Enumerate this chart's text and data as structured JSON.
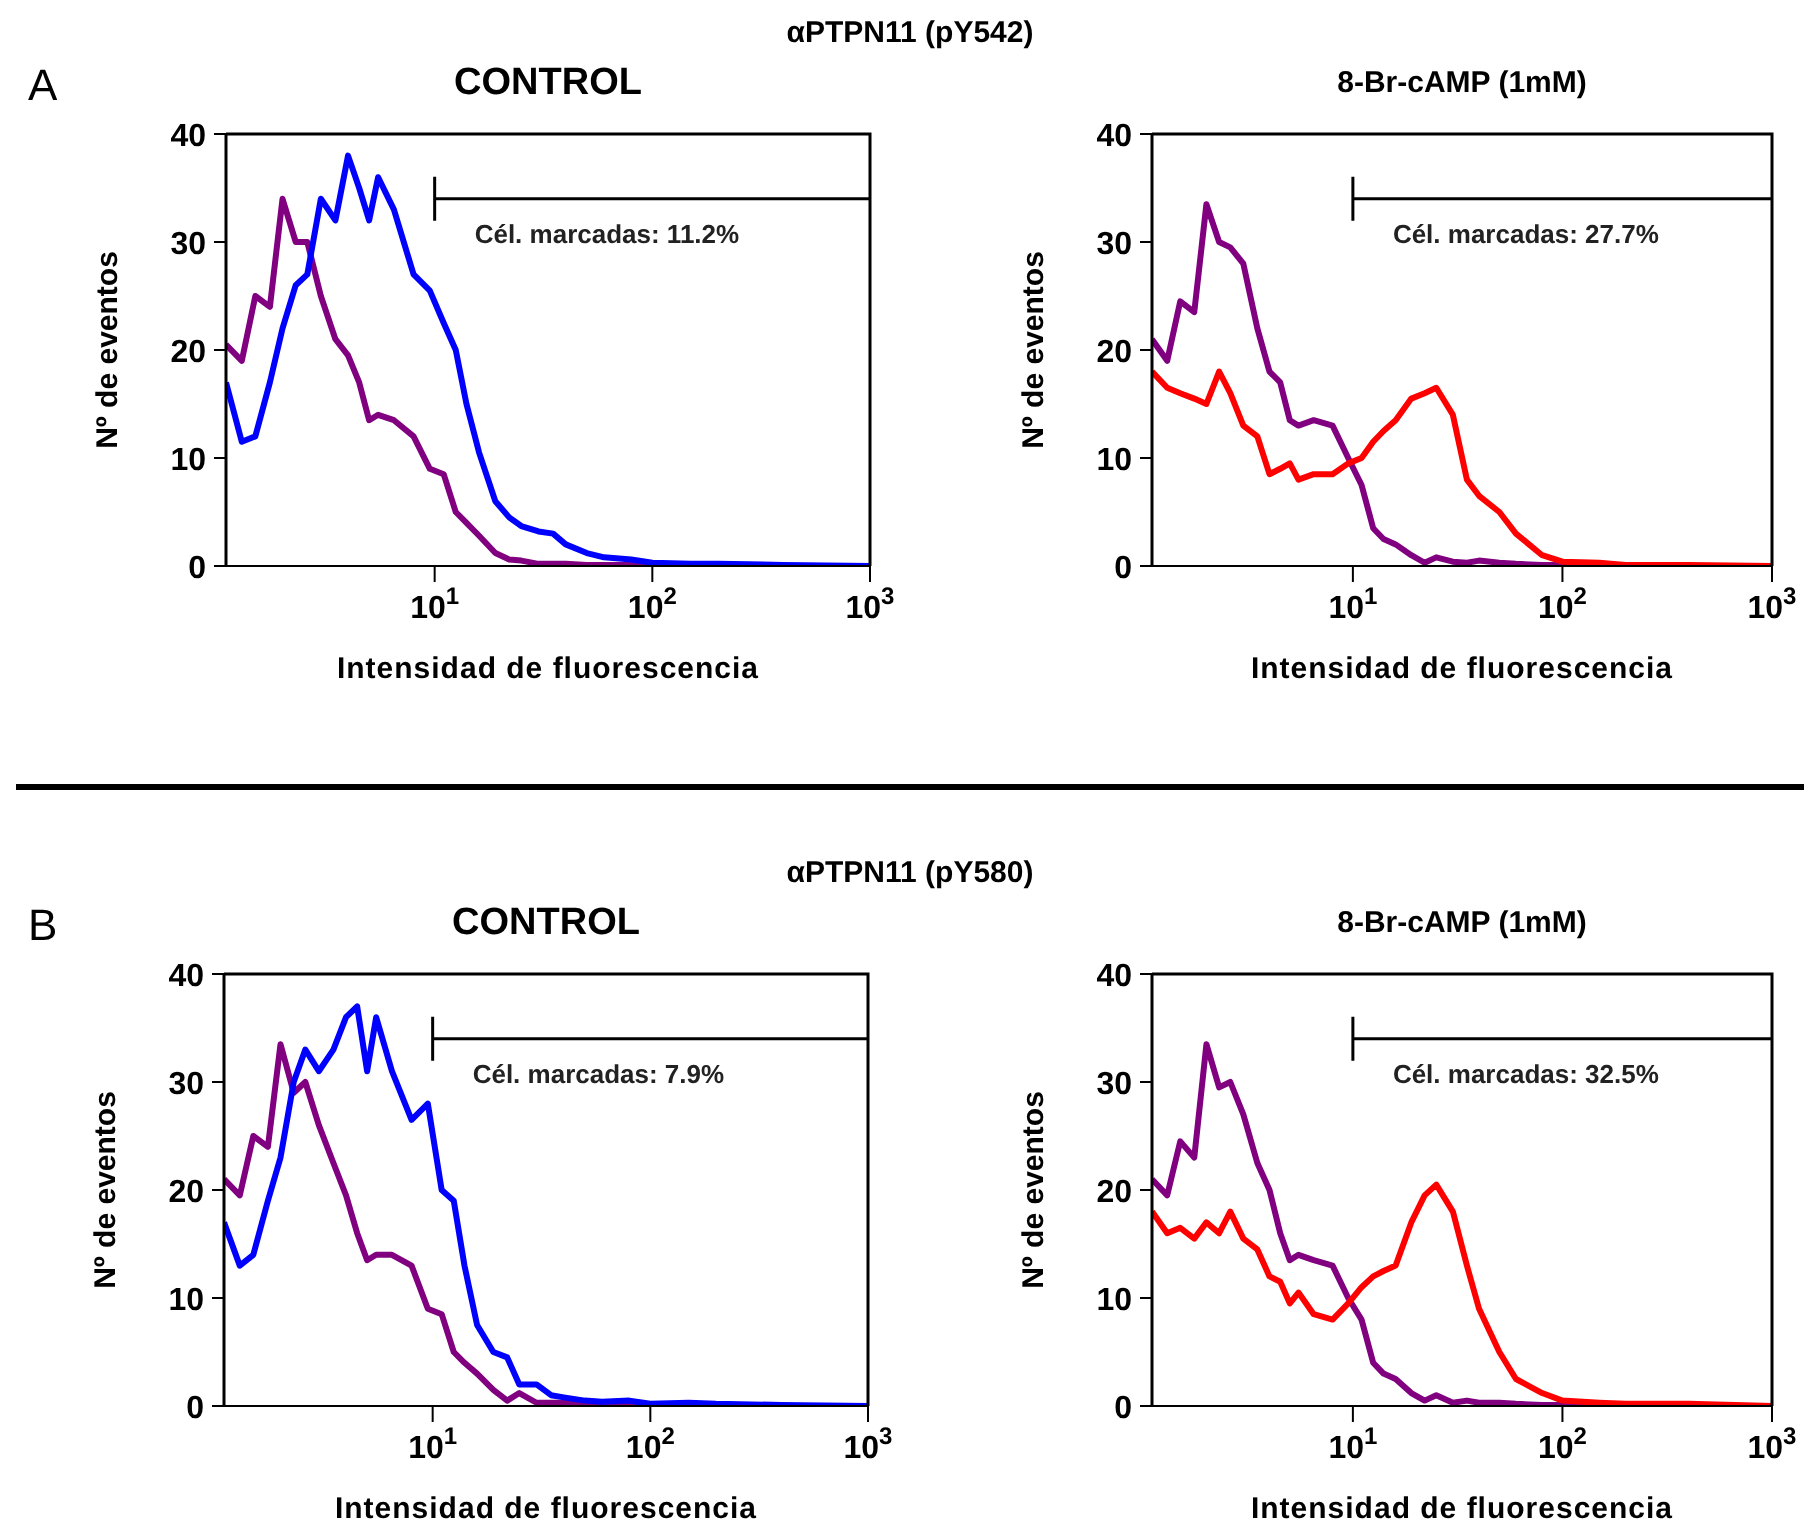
{
  "chart_data": [
    {
      "type": "line",
      "title": "CONTROL",
      "xlabel": "Intensidad de fluorescencia",
      "ylabel": "Nº de eventos",
      "log": "x",
      "xlim": [
        1.1,
        1000
      ],
      "xticks": [
        {
          "value": 10,
          "label": "10$^{1}$"
        },
        {
          "value": 100,
          "label": "10$^{2}$"
        },
        {
          "value": 1000,
          "label": "10$^{3}$"
        }
      ],
      "ylim": [
        0,
        40
      ],
      "yticks": [
        0,
        10,
        20,
        30,
        40
      ],
      "annotations": [
        "A",
        "αPTPN11 (pY542)",
        "Cél. marcadas: 11.2%"
      ],
      "x": [
        1.1,
        1.3,
        1.5,
        1.75,
        2,
        2.3,
        2.6,
        3,
        3.5,
        4,
        4.5,
        5,
        5.5,
        6.5,
        8,
        9.5,
        11,
        12.5,
        14,
        16,
        19,
        22,
        25,
        30,
        35,
        40,
        50,
        60,
        80,
        100,
        150,
        200,
        400,
        1000
      ],
      "series": [
        {
          "color": "#800080",
          "values": [
            20.5,
            19,
            25,
            24,
            34,
            30,
            30,
            25,
            21,
            19.5,
            17,
            13.5,
            14,
            13.5,
            12,
            9,
            8.5,
            5,
            4,
            2.8,
            1.2,
            0.6,
            0.5,
            0.2,
            0.2,
            0.2,
            0.1,
            0.1,
            0.1,
            0.1,
            0,
            null,
            null,
            null
          ]
        },
        {
          "color": "#0000ff",
          "values": [
            17,
            11.5,
            12,
            17,
            22,
            26,
            27,
            34,
            32,
            38,
            35,
            32,
            36,
            33,
            27,
            25.5,
            22.5,
            20,
            15,
            10.5,
            6,
            4.5,
            3.7,
            3.2,
            3,
            2,
            1.2,
            0.8,
            0.6,
            0.3,
            0.2,
            0.2,
            0.1,
            0
          ]
        }
      ]
    },
    {
      "type": "line",
      "title": "8-Br-cAMP (1mM)",
      "xlabel": "Intensidad de fluorescencia",
      "ylabel": "Nº de eventos",
      "log": "x",
      "xlim": [
        1.1,
        1000
      ],
      "xticks": [
        {
          "value": 10,
          "label": "10$^{1}$"
        },
        {
          "value": 100,
          "label": "10$^{2}$"
        },
        {
          "value": 1000,
          "label": "10$^{3}$"
        }
      ],
      "ylim": [
        0,
        40
      ],
      "yticks": [
        0,
        10,
        20,
        30,
        40
      ],
      "annotations": [
        "Cél. marcadas: 27.7%"
      ],
      "x": [
        1.1,
        1.3,
        1.5,
        1.75,
        2,
        2.3,
        2.6,
        3,
        3.5,
        4,
        4.5,
        5,
        5.5,
        6.5,
        8,
        9.5,
        11,
        12.5,
        14,
        16,
        19,
        22,
        25,
        30,
        35,
        40,
        50,
        60,
        80,
        100,
        150,
        200,
        400,
        1000
      ],
      "series": [
        {
          "color": "#800080",
          "values": [
            21,
            19,
            24.5,
            23.5,
            33.5,
            30,
            29.5,
            28,
            22,
            18,
            17,
            13.5,
            13,
            13.5,
            13,
            10,
            7.5,
            3.5,
            2.5,
            2,
            1,
            0.3,
            0.8,
            0.4,
            0.3,
            0.5,
            0.3,
            0.2,
            0.1,
            0.1,
            0.1,
            null,
            null,
            null
          ]
        },
        {
          "color": "#ff0000",
          "values": [
            18,
            16.5,
            16,
            15.5,
            15,
            18,
            16,
            13,
            12,
            8.5,
            9,
            9.5,
            8,
            8.5,
            8.5,
            9.5,
            10,
            11.5,
            12.5,
            13.5,
            15.5,
            16,
            16.5,
            14,
            8,
            6.5,
            5,
            3,
            1,
            0.4,
            0.3,
            0.1,
            0.1,
            0
          ]
        }
      ]
    },
    {
      "type": "line",
      "title": "CONTROL",
      "xlabel": "Intensidad de fluorescencia",
      "ylabel": "Nº de eventos",
      "log": "x",
      "xlim": [
        1.1,
        1000
      ],
      "xticks": [
        {
          "value": 10,
          "label": "10$^{1}$"
        },
        {
          "value": 100,
          "label": "10$^{2}$"
        },
        {
          "value": 1000,
          "label": "10$^{3}$"
        }
      ],
      "ylim": [
        0,
        40
      ],
      "yticks": [
        0,
        10,
        20,
        30,
        40
      ],
      "annotations": [
        "B",
        "αPTPN11 (pY580)",
        "Cél. marcadas: 7.9%"
      ],
      "x": [
        1.1,
        1.3,
        1.5,
        1.75,
        2,
        2.3,
        2.6,
        3,
        3.5,
        4,
        4.5,
        5,
        5.5,
        6.5,
        8,
        9.5,
        11,
        12.5,
        14,
        16,
        19,
        22,
        25,
        30,
        35,
        40,
        50,
        60,
        80,
        100,
        150,
        200,
        400,
        1000
      ],
      "series": [
        {
          "color": "#800080",
          "values": [
            21,
            19.5,
            25,
            24,
            33.5,
            29,
            30,
            26,
            22.5,
            19.5,
            16,
            13.5,
            14,
            14,
            13,
            9,
            8.5,
            5,
            4,
            3,
            1.5,
            0.5,
            1.2,
            0.3,
            0.3,
            0.3,
            0.2,
            0.1,
            0.1,
            0.1,
            0,
            null,
            null,
            null
          ]
        },
        {
          "color": "#0000ff",
          "values": [
            17,
            13,
            14,
            19,
            23,
            30,
            33,
            31,
            33,
            36,
            37,
            31,
            36,
            31,
            26.5,
            28,
            20,
            19,
            13,
            7.5,
            5,
            4.5,
            2,
            2,
            1,
            0.8,
            0.5,
            0.4,
            0.5,
            0.2,
            0.3,
            0.2,
            0.1,
            0
          ]
        }
      ]
    },
    {
      "type": "line",
      "title": "8-Br-cAMP (1mM)",
      "xlabel": "Intensidad de fluorescencia",
      "ylabel": "Nº de eventos",
      "log": "x",
      "xlim": [
        1.1,
        1000
      ],
      "xticks": [
        {
          "value": 10,
          "label": "10$^{1}$"
        },
        {
          "value": 100,
          "label": "10$^{2}$"
        },
        {
          "value": 1000,
          "label": "10$^{3}$"
        }
      ],
      "ylim": [
        0,
        40
      ],
      "yticks": [
        0,
        10,
        20,
        30,
        40
      ],
      "annotations": [
        "Cél. marcadas: 32.5%"
      ],
      "x": [
        1.1,
        1.3,
        1.5,
        1.75,
        2,
        2.3,
        2.6,
        3,
        3.5,
        4,
        4.5,
        5,
        5.5,
        6.5,
        8,
        9.5,
        11,
        12.5,
        14,
        16,
        19,
        22,
        25,
        30,
        35,
        40,
        50,
        60,
        80,
        100,
        150,
        200,
        400,
        1000
      ],
      "series": [
        {
          "color": "#800080",
          "values": [
            21,
            19.5,
            24.5,
            23,
            33.5,
            29.5,
            30,
            27,
            22.5,
            20,
            16,
            13.5,
            14,
            13.5,
            13,
            10,
            8,
            4,
            3,
            2.5,
            1.2,
            0.5,
            1,
            0.3,
            0.5,
            0.3,
            0.3,
            0.2,
            0.1,
            0.1,
            0,
            null,
            null,
            null
          ]
        },
        {
          "color": "#ff0000",
          "values": [
            18,
            16,
            16.5,
            15.5,
            17,
            16,
            18,
            15.5,
            14.5,
            12,
            11.5,
            9.5,
            10.5,
            8.5,
            8,
            9.5,
            11,
            12,
            12.5,
            13,
            17,
            19.5,
            20.5,
            18,
            13,
            9,
            5,
            2.5,
            1.2,
            0.5,
            0.3,
            0.2,
            0.2,
            0
          ]
        }
      ]
    }
  ]
}
